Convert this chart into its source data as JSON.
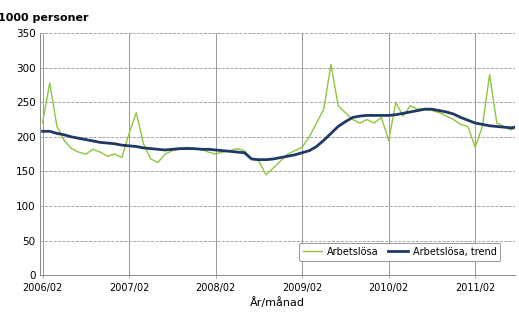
{
  "title": "",
  "top_label": "1000 personer",
  "xlabel": "År/månad",
  "ylim": [
    0,
    350
  ],
  "yticks": [
    0,
    50,
    100,
    150,
    200,
    250,
    300,
    350
  ],
  "xtick_labels": [
    "2006/02",
    "2007/02",
    "2008/02",
    "2009/02",
    "2010/02",
    "2011/02"
  ],
  "arbetslosa_color": "#8dc63f",
  "trend_color": "#1f3864",
  "arbetslosa_label": "Arbetslösa",
  "trend_label": "Arbetslösa, trend",
  "arbetslosa": [
    220,
    278,
    215,
    195,
    183,
    178,
    175,
    182,
    178,
    172,
    175,
    170,
    205,
    235,
    190,
    168,
    163,
    175,
    180,
    182,
    185,
    183,
    182,
    178,
    175,
    178,
    180,
    183,
    180,
    168,
    165,
    145,
    155,
    165,
    175,
    180,
    185,
    200,
    220,
    240,
    305,
    245,
    235,
    225,
    220,
    225,
    220,
    228,
    195,
    250,
    230,
    245,
    240,
    240,
    238,
    235,
    230,
    225,
    218,
    215,
    185,
    215,
    290,
    220,
    215,
    210,
    215,
    220
  ],
  "trend": [
    208,
    208,
    205,
    203,
    200,
    198,
    196,
    194,
    192,
    191,
    190,
    188,
    187,
    186,
    184,
    183,
    182,
    181,
    182,
    183,
    183,
    183,
    182,
    182,
    181,
    180,
    179,
    178,
    177,
    168,
    167,
    167,
    168,
    170,
    172,
    174,
    177,
    180,
    186,
    195,
    205,
    215,
    222,
    228,
    230,
    231,
    231,
    231,
    231,
    232,
    234,
    236,
    238,
    240,
    240,
    238,
    236,
    233,
    228,
    224,
    220,
    218,
    216,
    215,
    214,
    213,
    215,
    218
  ],
  "n_points": 68,
  "background_color": "#ffffff",
  "grid_color": "#999999",
  "spine_color": "#888888",
  "vline_color": "#888888"
}
